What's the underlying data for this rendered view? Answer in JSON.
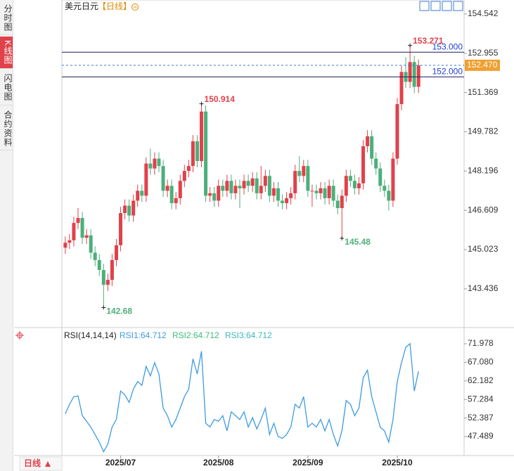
{
  "sidebar": {
    "tabs": [
      "分时图",
      "K线图",
      "闪电图",
      "合约资料"
    ]
  },
  "footer": {
    "period": "日线"
  },
  "chart_data": [
    {
      "type": "candlestick",
      "title": "美元日元",
      "period": "【日线】",
      "up_color": "#e0414b",
      "down_color": "#4caf7a",
      "open": [
        145.1,
        145.3,
        145.4,
        146.1,
        146.3,
        145.5,
        145.6,
        144.9,
        144.6,
        144.2,
        143.6,
        143.8,
        144.6,
        145.2,
        146.5,
        146.8,
        146.4,
        147.0,
        147.4,
        147.2,
        148.5,
        148.3,
        148.7,
        148.4,
        147.4,
        147.6,
        146.9,
        147.1,
        147.8,
        148.2,
        148.4,
        149.4,
        148.6,
        150.6,
        147.2,
        147.3,
        147.0,
        147.6,
        147.4,
        147.8,
        147.3,
        147.6,
        147.5,
        147.8,
        147.6,
        147.9,
        147.3,
        147.6,
        148.0,
        147.2,
        147.5,
        147.0,
        146.9,
        147.1,
        147.3,
        148.2,
        148.0,
        148.4,
        147.4,
        147.4,
        147.3,
        147.5,
        147.1,
        147.6,
        147.0,
        146.7,
        147.2,
        148.0,
        147.8,
        147.5,
        147.7,
        149.2,
        149.6,
        148.7,
        148.3,
        147.6,
        147.4,
        147.0,
        148.7,
        150.9,
        152.2,
        151.8,
        152.6,
        151.6
      ],
      "high": [
        145.55,
        145.65,
        146.35,
        146.7,
        146.55,
        145.85,
        145.85,
        145.15,
        144.85,
        144.45,
        144.05,
        144.85,
        145.45,
        146.75,
        147.05,
        147.05,
        147.25,
        147.65,
        147.65,
        148.75,
        149.1,
        148.95,
        148.95,
        148.65,
        147.85,
        147.85,
        147.35,
        148.05,
        148.45,
        148.65,
        149.65,
        149.65,
        150.914,
        150.85,
        147.55,
        147.55,
        147.85,
        147.85,
        148.05,
        148.05,
        147.85,
        147.85,
        148.05,
        148.05,
        148.15,
        148.15,
        148.4,
        148.25,
        148.25,
        147.75,
        147.75,
        147.25,
        147.35,
        147.55,
        148.45,
        148.8,
        148.65,
        148.65,
        147.65,
        147.65,
        147.75,
        147.75,
        147.85,
        147.85,
        147.25,
        147.45,
        148.25,
        148.25,
        148.05,
        147.95,
        149.45,
        149.85,
        149.85,
        148.95,
        148.55,
        147.85,
        147.65,
        148.95,
        151.15,
        152.45,
        152.8,
        153.271,
        152.85,
        152.7
      ],
      "low": [
        144.85,
        145.05,
        145.15,
        145.85,
        145.25,
        145.25,
        144.65,
        144.35,
        143.95,
        142.68,
        143.35,
        143.55,
        144.35,
        144.95,
        146.25,
        146.15,
        146.15,
        146.75,
        146.95,
        146.95,
        148.05,
        148.05,
        148.15,
        147.15,
        147.15,
        146.65,
        146.65,
        146.85,
        147.55,
        147.95,
        148.15,
        148.35,
        148.35,
        146.95,
        146.95,
        146.75,
        146.75,
        147.15,
        147.15,
        147.05,
        147.05,
        146.7,
        147.25,
        147.35,
        147.35,
        147.05,
        147.05,
        147.35,
        146.95,
        146.95,
        146.75,
        146.65,
        146.65,
        146.85,
        147.05,
        147.75,
        147.75,
        147.15,
        146.75,
        147.05,
        147.05,
        146.85,
        146.85,
        146.75,
        146.45,
        145.48,
        146.95,
        147.55,
        147.25,
        147.25,
        147.45,
        148.95,
        148.45,
        148.05,
        147.35,
        147.15,
        146.6,
        146.75,
        148.45,
        150.65,
        151.55,
        151.55,
        151.35,
        151.35
      ],
      "close": [
        145.3,
        145.4,
        146.1,
        146.3,
        145.5,
        145.6,
        144.9,
        144.6,
        144.2,
        143.6,
        143.8,
        144.6,
        145.2,
        146.5,
        146.8,
        146.4,
        147.0,
        147.4,
        147.2,
        148.5,
        148.3,
        148.7,
        148.4,
        147.4,
        147.6,
        146.9,
        147.1,
        147.8,
        148.2,
        148.4,
        149.4,
        148.6,
        150.6,
        147.2,
        147.3,
        147.0,
        147.6,
        147.4,
        147.8,
        147.3,
        147.6,
        147.5,
        147.8,
        147.6,
        147.9,
        147.3,
        147.6,
        148.0,
        147.2,
        147.5,
        147.0,
        146.9,
        147.1,
        147.3,
        148.2,
        148.0,
        148.4,
        147.4,
        147.4,
        147.3,
        147.5,
        147.1,
        147.6,
        147.0,
        146.7,
        147.2,
        148.0,
        147.8,
        147.5,
        147.7,
        149.2,
        149.6,
        148.7,
        148.3,
        147.6,
        147.4,
        147.0,
        148.7,
        150.9,
        152.2,
        151.8,
        152.6,
        151.6,
        152.47
      ],
      "high_labels": [
        81,
        32
      ],
      "low_labels": [
        65,
        9
      ],
      "price_lines": [
        {
          "value": 153,
          "label": "153.000"
        },
        {
          "value": 152,
          "label": "152.000"
        }
      ],
      "last_price": {
        "value": 152.47,
        "label": "152.470"
      },
      "xlim": [
        -0.8,
        93.7
      ],
      "xticks": [
        {
          "value": 13,
          "label": "2025/07"
        },
        {
          "value": 36,
          "label": "2025/08"
        },
        {
          "value": 57,
          "label": "2025/09"
        },
        {
          "value": 78,
          "label": "2025/10"
        }
      ],
      "ylim": [
        141.9,
        154.88
      ],
      "yticks": [
        154.542,
        152.955,
        151.369,
        149.782,
        148.196,
        146.609,
        145.023,
        143.436
      ]
    },
    {
      "type": "line",
      "title": "RSI(14,14,14)",
      "series": [
        {
          "name": "RSI1:64.712",
          "color": "#3d9be0",
          "values": [
            53.5,
            56,
            58,
            58.2,
            53,
            51.5,
            50,
            48,
            46,
            43.5,
            45.5,
            50,
            52,
            59.5,
            58.5,
            56.5,
            60,
            62,
            61,
            66,
            63.5,
            67,
            64,
            55,
            53,
            50,
            52,
            55,
            58,
            60,
            68,
            64,
            70,
            51,
            50,
            52,
            51.5,
            53,
            49,
            54,
            53,
            52,
            54,
            50,
            52.5,
            49.5,
            52,
            55,
            48,
            51,
            47.5,
            47,
            48,
            50,
            56,
            55,
            58,
            50,
            51,
            50,
            52,
            49,
            52,
            48,
            45,
            49,
            57,
            56,
            53,
            55,
            63,
            65,
            58,
            54,
            50,
            49,
            46,
            52,
            62,
            67,
            71,
            72,
            59.5,
            64.712
          ]
        }
      ],
      "extra_legend": [
        {
          "name": "RSI2:64.712",
          "color": "#3cbf7a"
        },
        {
          "name": "RSI3:64.712",
          "color": "#3cb8c0"
        }
      ],
      "xlim": [
        -0.8,
        93.7
      ],
      "ylim": [
        42.48,
        75.5
      ],
      "yticks": [
        71.978,
        {
          "value": 67.08,
          "label": "67.080"
        },
        62.182,
        57.284,
        52.387,
        47.489
      ]
    }
  ]
}
